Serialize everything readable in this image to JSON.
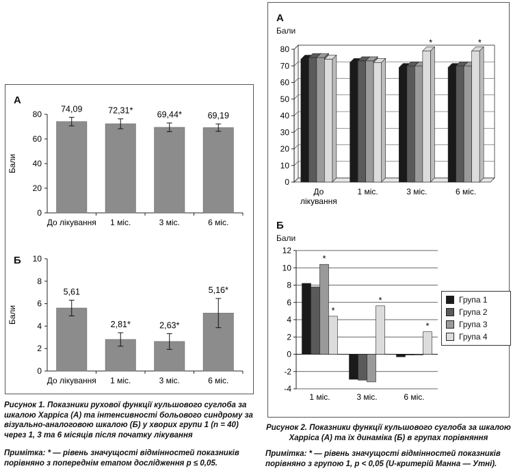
{
  "figure1": {
    "panelA": {
      "letter": "А",
      "ylabel": "Бали",
      "ticks": [
        "0",
        "20",
        "40",
        "60",
        "80"
      ],
      "categories": [
        "До лікування",
        "1 міс.",
        "3 міс.",
        "6 міс."
      ],
      "labels": [
        "74,09",
        "72,31*",
        "69,44*",
        "69,19"
      ]
    },
    "panelB": {
      "letter": "Б",
      "ylabel": "Бали",
      "ticks": [
        "0",
        "2",
        "4",
        "6",
        "8",
        "10"
      ],
      "categories": [
        "До лікування",
        "1 міс.",
        "3 міс.",
        "6 міс."
      ],
      "labels": [
        "5,61",
        "2,81*",
        "2,63*",
        "5,16*"
      ]
    },
    "caption": "Рисунок 1. Показники рухової функції кульшового суглоба за шкалою Харріса (А) та інтенсивності больового синдрому за візуально-аналоговою шкалою (Б) у хворих групи 1 (n = 40) через 1, 3 та 6 місяців після початку лікування",
    "note": "Примітка: * — рівень значущості відмінностей показників порівняно з попереднім етапом дослідження p ≤ 0,05."
  },
  "figure2": {
    "panelA": {
      "letter": "А",
      "ylabel": "Бали",
      "ticks": [
        "0",
        "10",
        "20",
        "30",
        "40",
        "50",
        "60",
        "70",
        "80"
      ],
      "categories": [
        "До лікування",
        "1 міс.",
        "3 міс.",
        "6 міс."
      ],
      "star": "*"
    },
    "panelB": {
      "letter": "Б",
      "ylabel": "Бали",
      "ticks": [
        "-4",
        "-2",
        "0",
        "2",
        "4",
        "6",
        "8",
        "10",
        "12"
      ],
      "categories": [
        "1 міс.",
        "3 міс.",
        "6 міс."
      ],
      "star": "*"
    },
    "legend": [
      "Група 1",
      "Група 2",
      "Група 3",
      "Група 4"
    ],
    "caption": "Рисунок 2. Показники функції кульшового суглоба за шкалою Харріса (А) та їх динаміка (Б) в групах порівняння",
    "note": "Примітка: * — рівень значущості відмінностей показників порівняно з групою 1, p < 0,05 (U-критерій Манна — Утні)."
  },
  "colors": {
    "fig1_bar": "#8c8c8c",
    "group1": "#1a1a1a",
    "group2": "#5a5a5a",
    "group3": "#9a9a9a",
    "group4": "#dcdcdc"
  },
  "chart_data": [
    {
      "type": "bar",
      "title": "А",
      "ylabel": "Бали",
      "categories": [
        "До лікування",
        "1 міс.",
        "3 міс.",
        "6 міс."
      ],
      "values": [
        74.09,
        72.31,
        69.44,
        69.19
      ],
      "errors": [
        3.5,
        4.0,
        3.5,
        3.0
      ],
      "ylim": [
        0,
        80
      ],
      "grid": false
    },
    {
      "type": "bar",
      "title": "Б",
      "ylabel": "Бали",
      "categories": [
        "До лікування",
        "1 міс.",
        "3 міс.",
        "6 міс."
      ],
      "values": [
        5.61,
        2.81,
        2.63,
        5.16
      ],
      "errors": [
        0.7,
        0.6,
        0.7,
        1.3
      ],
      "ylim": [
        0,
        10
      ],
      "grid": false
    },
    {
      "type": "bar",
      "title": "А",
      "ylabel": "Бали",
      "categories": [
        "До лікування",
        "1 міс.",
        "3 міс.",
        "6 міс."
      ],
      "series": [
        {
          "name": "Група 1",
          "values": [
            74,
            72,
            69,
            69
          ]
        },
        {
          "name": "Група 2",
          "values": [
            75,
            73,
            70,
            70
          ]
        },
        {
          "name": "Група 3",
          "values": [
            75,
            73,
            70,
            70
          ]
        },
        {
          "name": "Група 4",
          "values": [
            74,
            72,
            79,
            79
          ]
        }
      ],
      "significant": [
        [
          false,
          false,
          false,
          false
        ],
        [
          false,
          false,
          false,
          false
        ],
        [
          false,
          false,
          false,
          false
        ],
        [
          false,
          false,
          true,
          true
        ]
      ],
      "ylim": [
        0,
        80
      ],
      "grid": true
    },
    {
      "type": "bar",
      "title": "Б",
      "ylabel": "Бали",
      "categories": [
        "1 міс.",
        "3 міс.",
        "6 міс."
      ],
      "series": [
        {
          "name": "Група 1",
          "values": [
            8.2,
            -2.9,
            -0.3
          ]
        },
        {
          "name": "Група 2",
          "values": [
            7.8,
            -3.0,
            0.0
          ]
        },
        {
          "name": "Група 3",
          "values": [
            10.4,
            -3.2,
            0.0
          ]
        },
        {
          "name": "Група 4",
          "values": [
            4.4,
            5.6,
            2.6
          ]
        }
      ],
      "significant": [
        [
          false,
          false,
          false
        ],
        [
          false,
          false,
          false
        ],
        [
          true,
          false,
          false
        ],
        [
          true,
          true,
          true
        ]
      ],
      "ylim": [
        -4,
        12
      ],
      "legend": "right",
      "grid": true
    }
  ]
}
